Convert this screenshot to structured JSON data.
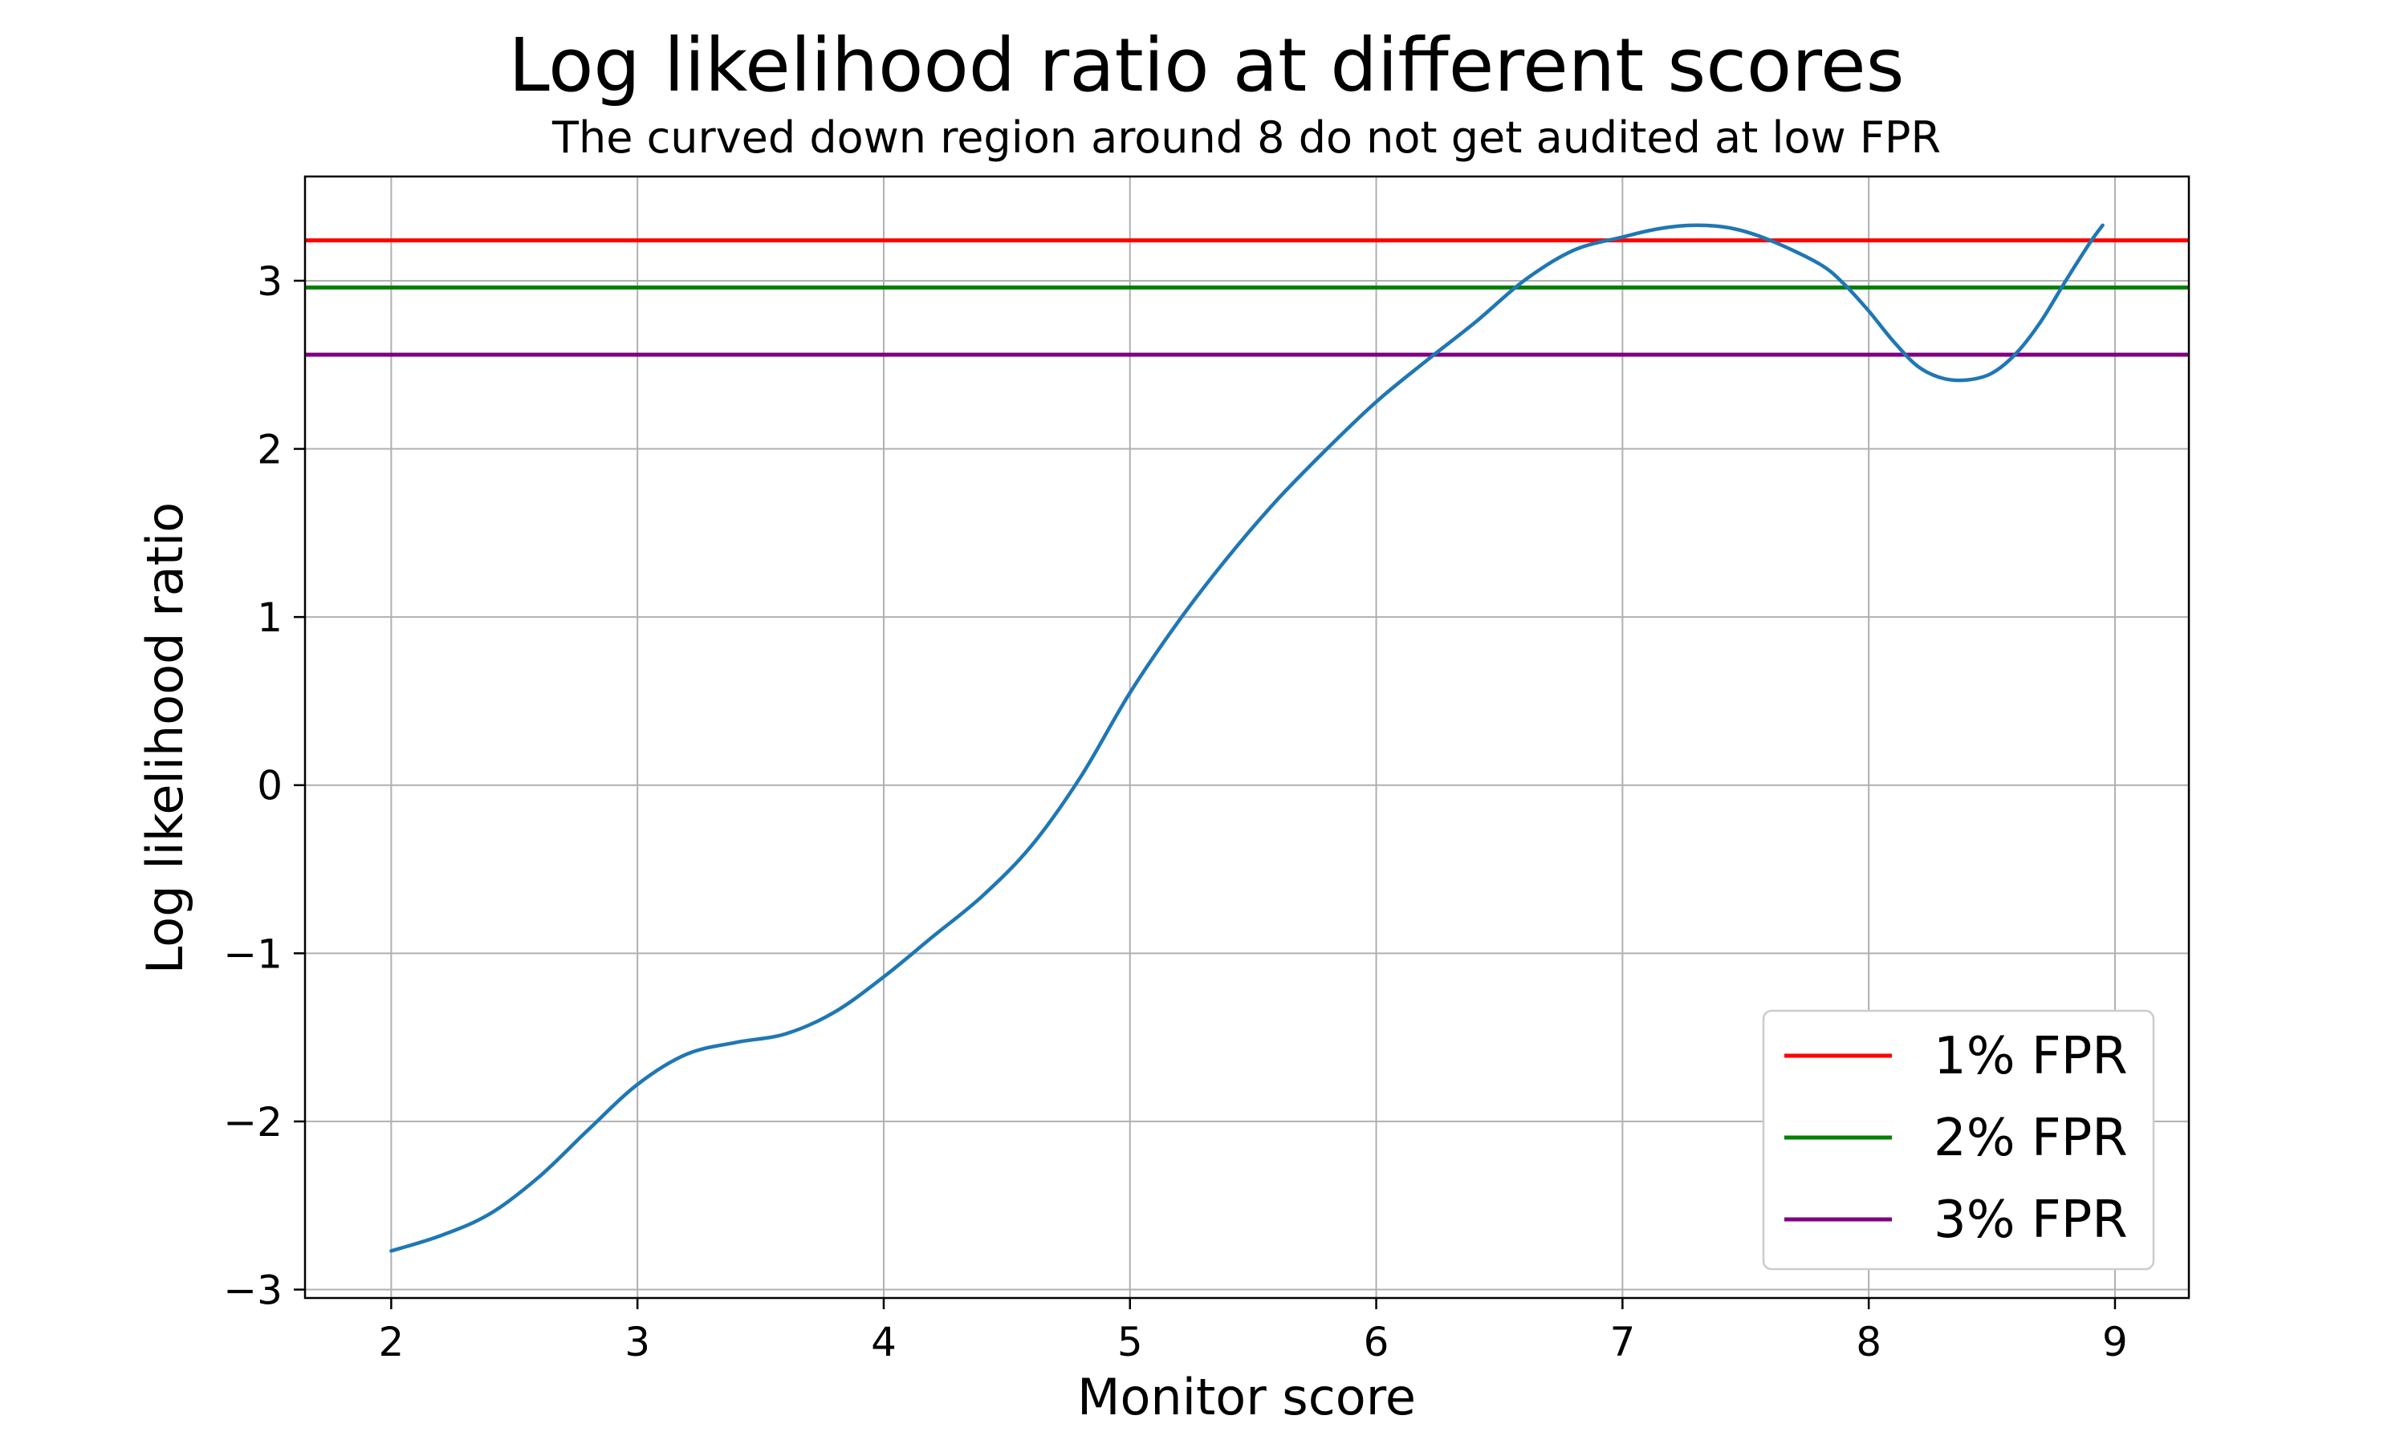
{
  "chart_data": {
    "type": "line",
    "title": "Log likelihood ratio at different scores",
    "subtitle": "The curved down region around 8 do not get audited at low FPR",
    "xlabel": "Monitor score",
    "ylabel": "Log likelihood ratio",
    "xlim": [
      1.65,
      9.3
    ],
    "ylim": [
      -3.05,
      3.62
    ],
    "x_ticks": [
      2,
      3,
      4,
      5,
      6,
      7,
      8,
      9
    ],
    "y_ticks": [
      -3,
      -2,
      -1,
      0,
      1,
      2,
      3
    ],
    "y_tick_labels": [
      "−3",
      "−2",
      "−1",
      "0",
      "1",
      "2",
      "3"
    ],
    "grid": true,
    "legend_position": "bottom-right",
    "series": [
      {
        "color": "#1f77b4",
        "x": [
          2.0,
          2.2,
          2.4,
          2.6,
          2.8,
          3.0,
          3.2,
          3.4,
          3.6,
          3.8,
          4.0,
          4.2,
          4.4,
          4.6,
          4.8,
          5.0,
          5.2,
          5.4,
          5.6,
          5.8,
          6.0,
          6.2,
          6.4,
          6.6,
          6.8,
          7.0,
          7.15,
          7.3,
          7.45,
          7.6,
          7.8,
          7.9,
          8.0,
          8.1,
          8.2,
          8.3,
          8.4,
          8.5,
          8.6,
          8.7,
          8.8,
          8.9,
          8.95
        ],
        "y": [
          -2.77,
          -2.68,
          -2.55,
          -2.33,
          -2.05,
          -1.78,
          -1.6,
          -1.53,
          -1.48,
          -1.35,
          -1.14,
          -0.9,
          -0.66,
          -0.36,
          0.05,
          0.55,
          0.98,
          1.36,
          1.7,
          2.0,
          2.28,
          2.52,
          2.75,
          3.0,
          3.18,
          3.26,
          3.31,
          3.33,
          3.31,
          3.24,
          3.1,
          2.98,
          2.82,
          2.64,
          2.49,
          2.42,
          2.41,
          2.45,
          2.57,
          2.76,
          3.0,
          3.23,
          3.33
        ]
      }
    ],
    "hlines": [
      {
        "name": "1% FPR",
        "y": 3.24,
        "color": "#ff0000"
      },
      {
        "name": "2% FPR",
        "y": 2.96,
        "color": "#008000"
      },
      {
        "name": "3% FPR",
        "y": 2.56,
        "color": "#800080"
      }
    ]
  }
}
